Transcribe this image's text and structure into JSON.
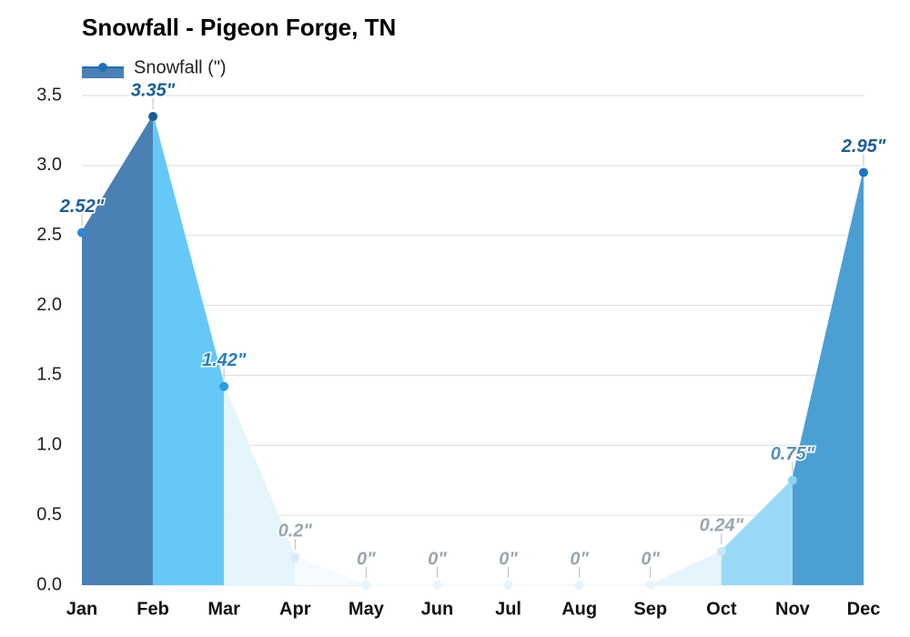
{
  "chart_data": {
    "type": "area",
    "title": "Snowfall - Pigeon Forge, TN",
    "categories": [
      "Jan",
      "Feb",
      "Mar",
      "Apr",
      "May",
      "Jun",
      "Jul",
      "Aug",
      "Sep",
      "Oct",
      "Nov",
      "Dec"
    ],
    "series": [
      {
        "name": "Snowfall (\")",
        "color": "#1f6fb5",
        "values": [
          2.52,
          3.35,
          1.42,
          0.2,
          0,
          0,
          0,
          0,
          0,
          0.24,
          0.75,
          2.95
        ],
        "value_labels": [
          "2.52\"",
          "3.35\"",
          "1.42\"",
          "0.2\"",
          "0\"",
          "0\"",
          "0\"",
          "0\"",
          "0\"",
          "0.24\"",
          "0.75\"",
          "2.95\""
        ],
        "segment_colors": [
          "#4a80b4",
          "#66c8f6",
          "#e6f4fc",
          "#f4fafe",
          "#f4fafe",
          "#f4fafe",
          "#f4fafe",
          "#f4fafe",
          "#e6f4fc",
          "#9ad9f6",
          "#4c9fd2"
        ],
        "point_colors": [
          "#2a8ad8",
          "#1a5d99",
          "#2a9de0",
          "#d8ecf8",
          "#e8f4fb",
          "#e8f4fb",
          "#e8f4fb",
          "#e8f4fb",
          "#e8f4fb",
          "#c8e7f8",
          "#8dd0f3",
          "#1f75c0"
        ],
        "label_colors": [
          "#1a5d99",
          "#1a5d99",
          "#2a7fc0",
          "#9aa6b0",
          "#9aa6b0",
          "#9aa6b0",
          "#9aa6b0",
          "#9aa6b0",
          "#9aa6b0",
          "#9aa6b0",
          "#5a8fb8",
          "#1a5d99"
        ]
      }
    ],
    "ylim": [
      0,
      3.5
    ],
    "yticks": [
      {
        "value": 0,
        "label": "0.0"
      },
      0.5,
      {
        "value": 1,
        "label": "1.0"
      },
      1.5,
      {
        "value": 2,
        "label": "2.0"
      },
      2.5,
      {
        "value": 3,
        "label": "3.0"
      },
      3.5
    ],
    "grid": true
  }
}
